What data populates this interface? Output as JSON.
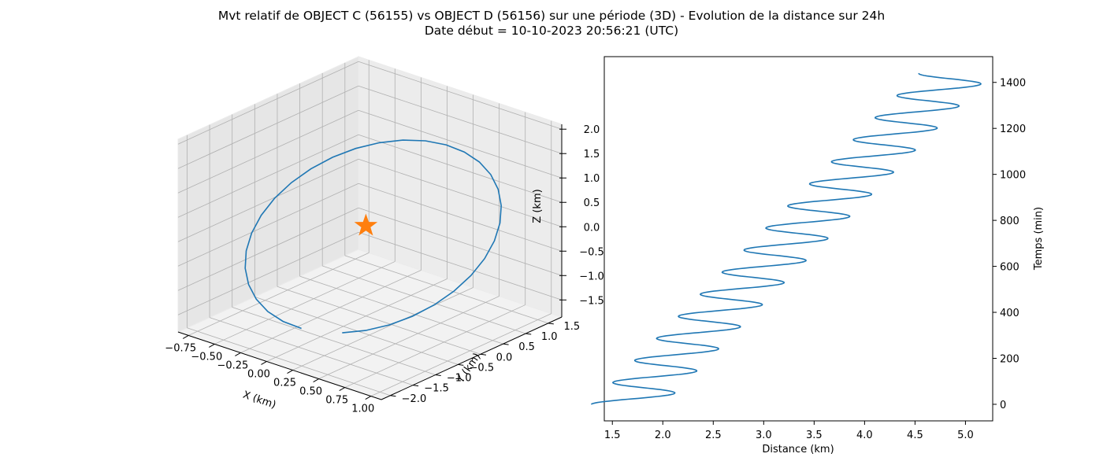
{
  "figure": {
    "title_line1": "Mvt relatif de OBJECT C (56155) vs OBJECT D (56156) sur une période (3D) - Evolution de la distance sur 24h",
    "title_line2": "Date début = 10-10-2023 20:56:21 (UTC)"
  },
  "colors": {
    "series": "#1f77b4",
    "marker": "#ff7f0e",
    "pane": "#f2f2f2",
    "grid": "#b0b0b0"
  },
  "chart_data": [
    {
      "type": "line3d",
      "title": "",
      "xlabel": "X (km)",
      "ylabel": "Y (km)",
      "zlabel": "Z (km)",
      "xlim": [
        -0.85,
        1.1
      ],
      "ylim": [
        -2.2,
        1.8
      ],
      "zlim": [
        -1.85,
        2.1
      ],
      "x_ticks": [
        "−0.75",
        "−0.50",
        "−0.25",
        "0.00",
        "0.25",
        "0.50",
        "0.75",
        "1.00"
      ],
      "y_ticks": [
        "−2.0",
        "−1.5",
        "−1.0",
        "−0.5",
        "0.0",
        "0.5",
        "1.0",
        "1.5"
      ],
      "z_ticks": [
        "−1.5",
        "−1.0",
        "−0.5",
        "0.0",
        "0.5",
        "1.0",
        "1.5",
        "2.0"
      ],
      "grid": true,
      "origin_marker": {
        "symbol": "star",
        "x": 0,
        "y": 0,
        "z": 0
      },
      "orbit": {
        "center": [
          0.2,
          -0.3,
          0.05
        ],
        "amplitude": [
          0.55,
          1.7,
          1.6
        ],
        "points": 32
      }
    },
    {
      "type": "line",
      "title": "",
      "xlabel": "Distance (km)",
      "ylabel": "Temps (min)",
      "ylabel_position": "right",
      "xlim": [
        1.42,
        5.27
      ],
      "ylim": [
        -72,
        1512
      ],
      "x_ticks": [
        "1.5",
        "2.0",
        "2.5",
        "3.0",
        "3.5",
        "4.0",
        "4.5",
        "5.0"
      ],
      "y_ticks": [
        "0",
        "200",
        "400",
        "600",
        "800",
        "1000",
        "1200",
        "1400"
      ],
      "series": [
        {
          "distance_trend": [
            1.6,
            4.85
          ],
          "oscillation_amplitude": 0.36,
          "period_min": 96,
          "t_range": [
            0,
            1440
          ]
        }
      ]
    }
  ]
}
